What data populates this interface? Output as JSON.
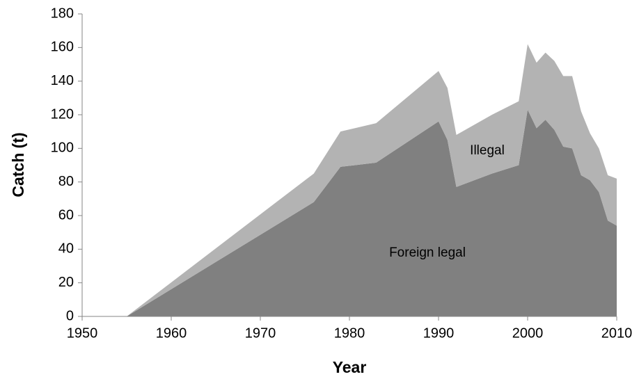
{
  "chart_data": {
    "type": "stacked_area",
    "x_label": "Year",
    "y_label": "Catch (t)",
    "x": [
      1950,
      1955,
      1976,
      1979,
      1983,
      1990,
      1991,
      1992,
      1996,
      1999,
      2000,
      2001,
      2002,
      2003,
      2004,
      2005,
      2006,
      2007,
      2008,
      2009,
      2010
    ],
    "series": [
      {
        "name": "Foreign legal",
        "color": "#808080",
        "values": [
          0,
          0,
          68,
          89,
          91.5,
          116,
          105,
          77,
          85,
          90,
          123,
          112,
          117,
          111,
          101,
          100,
          84,
          81,
          74,
          57,
          54
        ]
      },
      {
        "name": "Illegal",
        "color": "#b3b3b3",
        "values": [
          0,
          0,
          17,
          21,
          23.5,
          30,
          31,
          31,
          35,
          38,
          39,
          39,
          40,
          41,
          42,
          43,
          38,
          28,
          26,
          27,
          28
        ]
      }
    ],
    "xlim": [
      1950,
      2010
    ],
    "xticks": [
      1950,
      1960,
      1970,
      1980,
      1990,
      2000,
      2010
    ],
    "ylim": [
      0,
      180
    ],
    "yticks": [
      0,
      20,
      40,
      60,
      80,
      100,
      120,
      140,
      160,
      180
    ],
    "grid": false
  }
}
